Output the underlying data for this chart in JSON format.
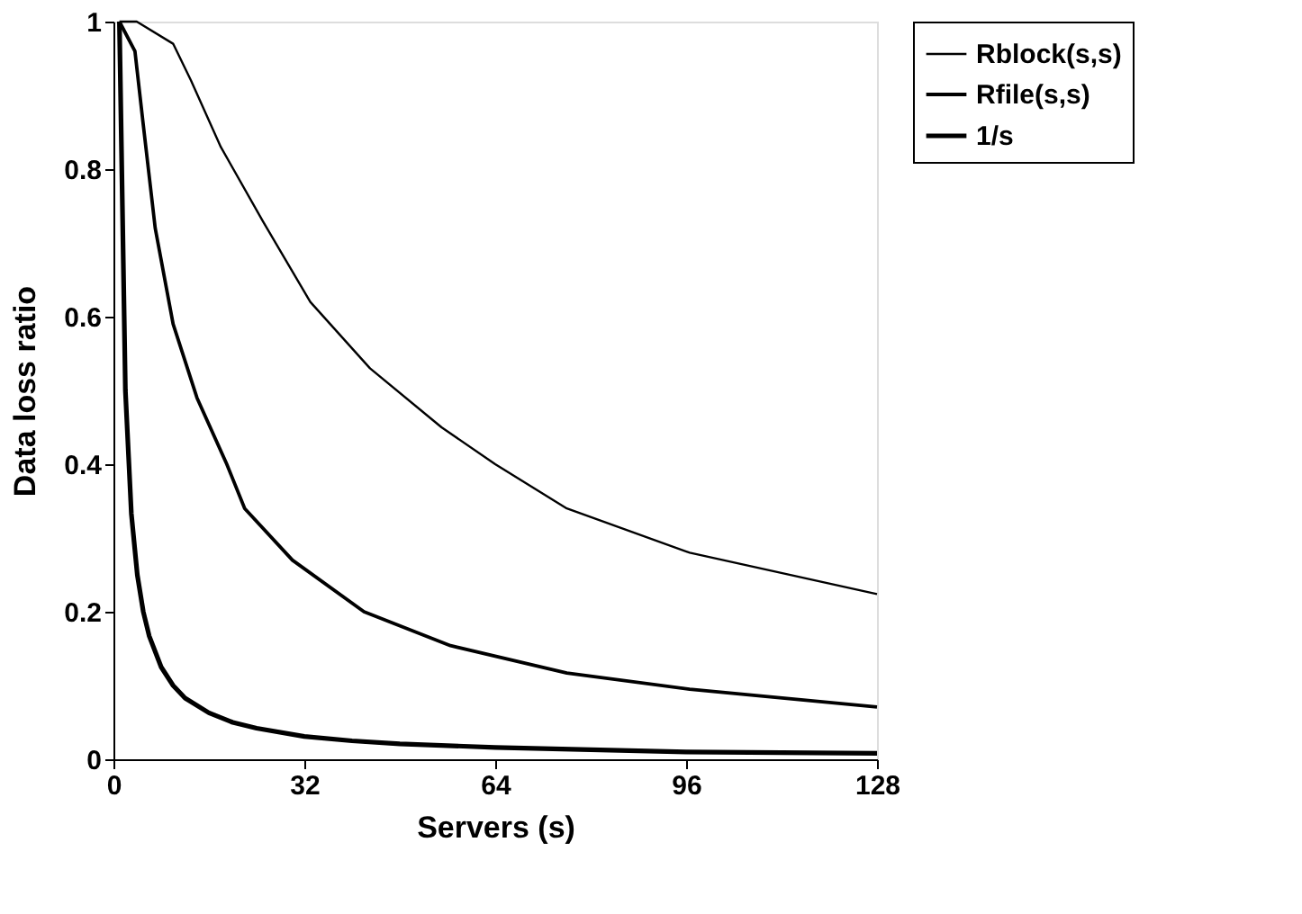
{
  "chart_data": {
    "type": "line",
    "xlabel": "Servers (s)",
    "ylabel": "Data loss ratio",
    "xlim": [
      0,
      128
    ],
    "xticks": [
      0,
      32,
      64,
      96,
      128
    ],
    "ylim": [
      0,
      1
    ],
    "yticks": [
      0,
      0.2,
      0.4,
      0.6,
      0.8,
      1
    ],
    "grid": false,
    "legend": "right",
    "marker": "none",
    "line_style": "solid",
    "series": [
      {
        "name": "Rblock(s,s)",
        "color": "#000000",
        "x": [
          1,
          3.9,
          10,
          13,
          18,
          25,
          33,
          43,
          55,
          64,
          76,
          96.6,
          128
        ],
        "values": [
          1,
          1,
          0.97,
          0.92,
          0.83,
          0.73,
          0.62,
          0.53,
          0.45,
          0.4,
          0.34,
          0.28,
          0.224
        ]
      },
      {
        "name": "Rfile(s,s)",
        "color": "#000000",
        "x": [
          1,
          3.6,
          5,
          7,
          10,
          14,
          19,
          22,
          30,
          42,
          56.5,
          76,
          96.6,
          128
        ],
        "values": [
          1,
          0.96,
          0.86,
          0.72,
          0.59,
          0.49,
          0.4,
          0.34,
          0.27,
          0.2,
          0.154,
          0.117,
          0.095,
          0.071
        ]
      },
      {
        "name": "1/s",
        "color": "#000000",
        "x": [
          1,
          2,
          3,
          4,
          5,
          6,
          8,
          10,
          12,
          16,
          20,
          24,
          32,
          40,
          48,
          64,
          80,
          96,
          112,
          128
        ],
        "values": [
          1,
          0.5,
          0.333,
          0.25,
          0.2,
          0.167,
          0.125,
          0.1,
          0.083,
          0.063,
          0.05,
          0.042,
          0.031,
          0.025,
          0.021,
          0.016,
          0.013,
          0.01,
          0.009,
          0.008
        ]
      }
    ]
  }
}
